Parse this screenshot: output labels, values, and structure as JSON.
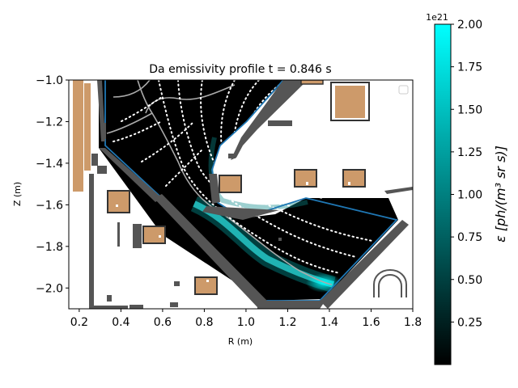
{
  "chart_data": {
    "type": "heatmap",
    "title": "Da emissivity profile t = 0.846 s",
    "xlabel": "R (m)",
    "ylabel": "Z (m)",
    "xlim": [
      0.15,
      1.8
    ],
    "ylim": [
      -2.1,
      -1.0
    ],
    "x_ticks": [
      0.2,
      0.4,
      0.6,
      0.8,
      1.0,
      1.2,
      1.4,
      1.6,
      1.8
    ],
    "x_tick_labels": [
      "0.2",
      "0.4",
      "0.6",
      "0.8",
      "1.0",
      "1.2",
      "1.4",
      "1.6",
      "1.8"
    ],
    "y_ticks": [
      -1.0,
      -1.2,
      -1.4,
      -1.6,
      -1.8,
      -2.0
    ],
    "y_tick_labels": [
      "−1.0",
      "−1.2",
      "−1.4",
      "−1.6",
      "−1.8",
      "−2.0"
    ],
    "colorbar": {
      "label": "ε [ph/(m³ sr s)]",
      "scale_label": "1e21",
      "min": 0.0,
      "max": 2.0,
      "ticks": [
        0.25,
        0.5,
        0.75,
        1.0,
        1.25,
        1.5,
        1.75,
        2.0
      ],
      "tick_labels": [
        "0.25",
        "0.50",
        "0.75",
        "1.00",
        "1.25",
        "1.50",
        "1.75",
        "2.00"
      ],
      "colors": [
        "#000000",
        "#00ffff"
      ]
    },
    "emission_band": {
      "description_points_R": [
        0.98,
        1.03,
        1.1,
        1.2,
        1.32,
        1.42
      ],
      "description_points_Z": [
        -1.62,
        -1.7,
        -1.8,
        -1.88,
        -1.95,
        -2.0
      ],
      "peak": 1.8
    },
    "colors": {
      "wall": "#555555",
      "coil": "#cd9a6a",
      "coil_border": "#333333",
      "boundary": "#1f77b4",
      "separatrix": "#aaaaaa",
      "flux_dots": "#ffffff"
    }
  }
}
